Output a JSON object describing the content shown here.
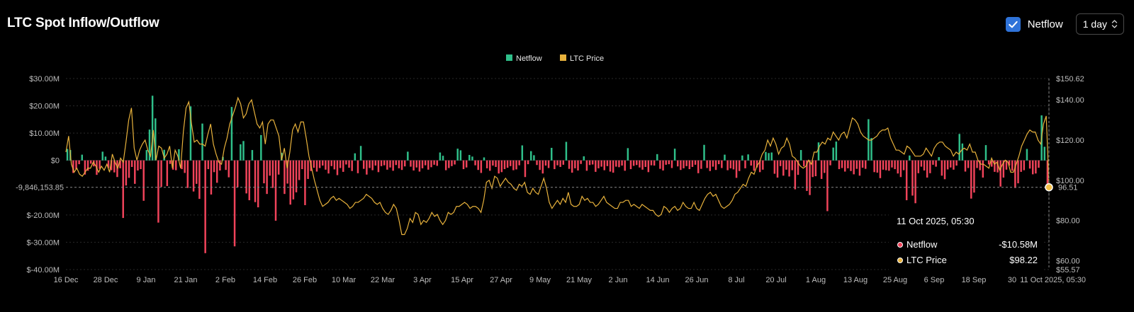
{
  "header": {
    "title": "LTC Spot Inflow/Outflow",
    "netflow_toggle_label": "Netflow",
    "netflow_checked": true,
    "interval_select_value": "1 day",
    "checkbox_color": "#2f73d9"
  },
  "legend": {
    "items": [
      {
        "label": "Netflow",
        "color": "#2fbf8a"
      },
      {
        "label": "LTC Price",
        "color": "#e8b23c"
      }
    ]
  },
  "tooltip": {
    "date": "11 Oct 2025, 05:30",
    "rows": [
      {
        "label": "Netflow",
        "value": "-$10.58M",
        "color": "#f0435a"
      },
      {
        "label": "LTC Price",
        "value": "$98.22",
        "color": "#e8b23c"
      }
    ]
  },
  "crosshair": {
    "netflow_label": "-9,846,153.85",
    "price_label": "96.51"
  },
  "colors": {
    "positive_bar": "#2fbf8a",
    "negative_bar": "#f0435a",
    "price_line": "#e8b23c",
    "grid": "#2a2a2a",
    "background": "#000000"
  },
  "chart_data": {
    "type": "bar",
    "title": "LTC Spot Inflow/Outflow",
    "legend_position": "top-center",
    "grid": true,
    "x_axis": {
      "start": "2024-12-16",
      "end": "2025-10-11",
      "tick_labels": [
        "16 Dec",
        "28 Dec",
        "9 Jan",
        "21 Jan",
        "2 Feb",
        "14 Feb",
        "26 Feb",
        "10 Mar",
        "22 Mar",
        "3 Apr",
        "15 Apr",
        "27 Apr",
        "9 May",
        "21 May",
        "2 Jun",
        "14 Jun",
        "26 Jun",
        "8 Jul",
        "20 Jul",
        "1 Aug",
        "13 Aug",
        "25 Aug",
        "6 Sep",
        "18 Sep",
        "30",
        "11 Oct 2025, 05:30"
      ]
    },
    "y_left": {
      "label": "",
      "range": [
        -40000000,
        30000000
      ],
      "tick_values": [
        30000000,
        20000000,
        10000000,
        0,
        -20000000,
        -30000000,
        -40000000
      ],
      "tick_labels": [
        "$30.00M",
        "$20.00M",
        "$10.00M",
        "$0",
        "$-20.00M",
        "$-30.00M",
        "$-40.00M"
      ]
    },
    "y_right": {
      "label": "",
      "range": [
        55.57,
        150.62
      ],
      "tick_values": [
        150.62,
        140,
        120,
        100,
        80,
        60,
        55.57
      ],
      "tick_labels": [
        "$150.62",
        "$140.00",
        "$120.00",
        "$100.00",
        "$80.00",
        "$60.00",
        "$55.57"
      ]
    },
    "series": [
      {
        "name": "Netflow",
        "type": "bar",
        "axis": "left",
        "unit": "USD millions",
        "values": [
          4.2,
          3.8,
          -4.6,
          -3.2,
          -1.4,
          2.1,
          -5.2,
          -3.8,
          -1.2,
          -2.2,
          -5.3,
          -3.1,
          3.2,
          1.4,
          -2.8,
          -3.6,
          -4.4,
          -6.1,
          -2.9,
          -21.1,
          -9.2,
          -6.4,
          -2.4,
          -8.6,
          -3.7,
          -3.2,
          -14.8,
          3.8,
          11.3,
          23.7,
          15.4,
          -22.8,
          -9.7,
          3.9,
          -9.4,
          -1.3,
          -3.4,
          -3.6,
          4.1,
          -3.2,
          -4.6,
          -10.1,
          19.8,
          -11.4,
          -8.6,
          -14.1,
          13.5,
          -34.0,
          -3.2,
          -12.5,
          -4.3,
          -8.2,
          -3.7,
          1.3,
          -3.5,
          -6.2,
          19.6,
          -31.5,
          -9.8,
          5.9,
          7.1,
          -12.1,
          -14.6,
          3.8,
          -15.3,
          -17.2,
          9.3,
          -8.4,
          -12.3,
          -5.6,
          -10.1,
          -22.1,
          -5.2,
          2.8,
          -12.3,
          -8.5,
          -16.2,
          -14.3,
          -11.7,
          -7.2,
          -3.2,
          -16.4,
          -6.8,
          -3.9,
          -2.7,
          -4.1,
          -2.8,
          -1.9,
          -3.4,
          -4.8,
          -2.1,
          -3.3,
          -5.4,
          -2.8,
          -4.2,
          -1.5,
          -2.7,
          -3.9,
          2.6,
          -4.7,
          5.3,
          -3.1,
          -5.2,
          -2.8,
          -3.6,
          -1.9,
          -4.3,
          -2.1,
          -1.8,
          -3.4,
          -2.6,
          -3.8,
          -1.7,
          -2.9,
          -3.5,
          -2.2,
          3.2,
          -2.3,
          -3.7,
          -2.6,
          -4.1,
          -2.9,
          -1.8,
          -3.4,
          -2.5,
          -1.6,
          -2.0,
          2.9,
          1.7,
          -3.6,
          -2.8,
          -2.1,
          -1.5,
          4.3,
          3.7,
          -3.2,
          -2.6,
          2.0,
          1.4,
          -1.8,
          -3.5,
          -4.6,
          1.1,
          -2.9,
          -3.8,
          -1.9,
          -2.4,
          -4.8,
          -4.3,
          -3.2,
          -2.7,
          -2.1,
          -3.6,
          -3.3,
          -1.8,
          5.5,
          -6.1,
          -1.4,
          3.4,
          1.9,
          -1.7,
          -3.5,
          -4.8,
          -1.9,
          -2.8,
          4.6,
          -3.2,
          -1.8,
          -2.4,
          -1.6,
          6.8,
          -3.1,
          -4.5,
          -2.9,
          -3.7,
          -1.3,
          1.5,
          -3.8,
          -1.7,
          -1.5,
          -4.2,
          -2.9,
          -2.3,
          -3.6,
          -2.1,
          -4.1,
          -4.5,
          -2.3,
          -2.5,
          -1.9,
          -3.8,
          4.5,
          -3.2,
          -2.0,
          -1.7,
          -2.6,
          -3.4,
          -2.4,
          -4.3,
          -1.8,
          -1.9,
          2.3,
          -3.1,
          -3.7,
          -1.6,
          -1.4,
          -2.8,
          4.3,
          -2.2,
          -3.5,
          -2.9,
          -2.1,
          -3.2,
          -2.4,
          -1.6,
          -4.7,
          -3.1,
          5.7,
          -2.8,
          -3.9,
          -2.3,
          -3.5,
          -1.4,
          -2.8,
          2.1,
          -3.6,
          -2.9,
          -3.3,
          -6.4,
          -3.9,
          1.8,
          -2.9,
          2.2,
          -1.9,
          -3.8,
          -2.6,
          -4.3,
          -3.4,
          3.1,
          2.7,
          2.9,
          -4.9,
          -6.3,
          -2.1,
          -5.6,
          -3.4,
          -5.9,
          -3.6,
          -10.6,
          -5.3,
          3.8,
          -2.2,
          -11.2,
          -12.7,
          -6.1,
          -5.8,
          6.6,
          -6.8,
          -4.6,
          -18.6,
          -1.8,
          4.7,
          6.9,
          -3.2,
          -2.8,
          -4.1,
          -2.9,
          -3.9,
          -5.1,
          -3.1,
          -5.6,
          -2.7,
          -3.1,
          15.1,
          8.2,
          -4.3,
          -4.5,
          -6.5,
          -3.4,
          -3.6,
          -3.8,
          -2.6,
          -3.2,
          -4.8,
          -6.1,
          -3.6,
          -14.6,
          1.8,
          -12.9,
          -15.7,
          -4.7,
          -2.3,
          -3.7,
          -6.3,
          -4.7,
          -1.6,
          -2.3,
          1.2,
          -5.6,
          -6.9,
          -3.3,
          -2.6,
          -3.4,
          -1.9,
          9.7,
          6.2,
          -4.1,
          -2.8,
          -14.0,
          -11.8,
          -2.8,
          -3.6,
          -6.3,
          5.6,
          -1.5,
          -2.3,
          -4.2,
          -4.4,
          -9.6,
          -6.3,
          -3.4,
          -1.9,
          -3.8,
          -10.1,
          -8.4,
          -4.2,
          -3.6,
          4.2,
          -3.0,
          -5.1,
          -4.8,
          -2.7,
          16.5,
          5.0,
          -10.58
        ]
      },
      {
        "name": "LTC Price",
        "type": "line",
        "axis": "right",
        "unit": "USD",
        "values": [
          114,
          122,
          108,
          104,
          106,
          103,
          102,
          104,
          106,
          106,
          109,
          107,
          104,
          107,
          105,
          108,
          104,
          113,
          109,
          106,
          111,
          109,
          119,
          130,
          136,
          116,
          110,
          115,
          118,
          120,
          115,
          112,
          125,
          110,
          117,
          116,
          111,
          113,
          117,
          106,
          115,
          112,
          106,
          124,
          136,
          139,
          128,
          119,
          120,
          118,
          118,
          117,
          123,
          128,
          118,
          113,
          109,
          108,
          116,
          121,
          128,
          132,
          136,
          141,
          138,
          131,
          133,
          138,
          140,
          134,
          128,
          126,
          129,
          118,
          128,
          130,
          130,
          126,
          122,
          110,
          116,
          106,
          114,
          125,
          128,
          124,
          129,
          129,
          121,
          112,
          106,
          100,
          95,
          90,
          87,
          88,
          89,
          91,
          92,
          90,
          91,
          90,
          89,
          88,
          86,
          87,
          89,
          89,
          90,
          91,
          93,
          92,
          91,
          89,
          88,
          89,
          86,
          84,
          83,
          85,
          88,
          86,
          80,
          73,
          73,
          76,
          81,
          79,
          84,
          83,
          78,
          80,
          79,
          81,
          84,
          82,
          83,
          80,
          78,
          80,
          84,
          83,
          84,
          87,
          87,
          88,
          89,
          88,
          86,
          87,
          87,
          86,
          84,
          90,
          99,
          100,
          96,
          102,
          101,
          97,
          99,
          101,
          99,
          98,
          96,
          95,
          98,
          97,
          99,
          94,
          93,
          96,
          94,
          93,
          97,
          101,
          96,
          89,
          86,
          88,
          90,
          88,
          91,
          89,
          94,
          88,
          87,
          87,
          88,
          92,
          90,
          91,
          89,
          89,
          87,
          88,
          90,
          92,
          89,
          88,
          87,
          86,
          86,
          89,
          89,
          90,
          90,
          87,
          88,
          87,
          86,
          88,
          87,
          86,
          85,
          85,
          83,
          82,
          83,
          87,
          86,
          84,
          86,
          87,
          85,
          86,
          89,
          87,
          86,
          86,
          89,
          86,
          85,
          88,
          91,
          93,
          94,
          92,
          93,
          90,
          87,
          86,
          87,
          88,
          90,
          93,
          94,
          96,
          98,
          97,
          101,
          104,
          103,
          107,
          109,
          113,
          115,
          120,
          117,
          121,
          118,
          113,
          116,
          117,
          121,
          118,
          112,
          111,
          109,
          107,
          106,
          107,
          110,
          108,
          114,
          114,
          117,
          119,
          118,
          121,
          120,
          124,
          122,
          120,
          123,
          124,
          121,
          126,
          131,
          130,
          128,
          124,
          122,
          121,
          120,
          120,
          121,
          122,
          124,
          125,
          125,
          126,
          121,
          118,
          115,
          115,
          114,
          113,
          117,
          116,
          114,
          112,
          112,
          112,
          113,
          116,
          114,
          112,
          116,
          118,
          119,
          119,
          117,
          116,
          115,
          112,
          114,
          113,
          115,
          116,
          115,
          118,
          114,
          114,
          110,
          108,
          108,
          107,
          106,
          111,
          108,
          109,
          105,
          108,
          110,
          109,
          104,
          104,
          108,
          112,
          117,
          120,
          123,
          125,
          124,
          124,
          120,
          118,
          128,
          132,
          98.22
        ]
      }
    ]
  }
}
